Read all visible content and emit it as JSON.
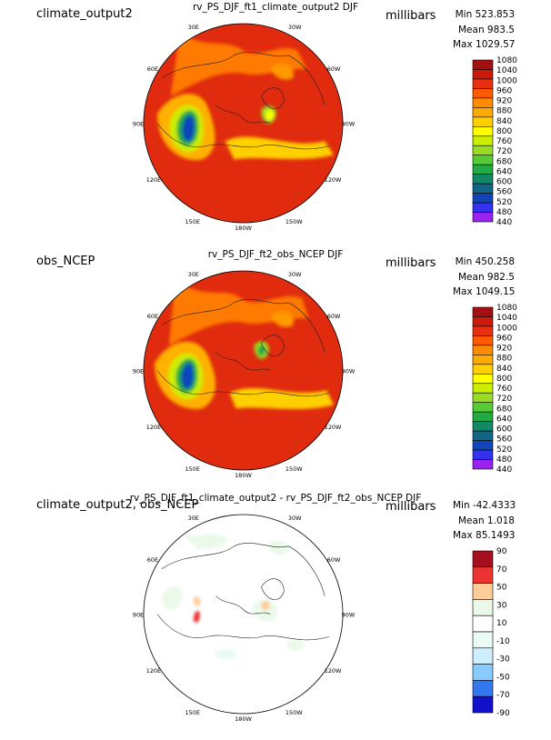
{
  "units": "millibars",
  "lon_labels": [
    "30E",
    "30W",
    "60E",
    "60W",
    "90E",
    "90W",
    "120E",
    "120W",
    "150E",
    "150W",
    "180W"
  ],
  "panels": [
    {
      "case": "climate_output2",
      "title": "rv_PS_DJF_ft1_climate_output2 DJF",
      "min": "Min 523.853",
      "mean": "Mean 983.5",
      "max": "Max 1029.57",
      "levels": [
        "1080",
        "1040",
        "1000",
        "960",
        "920",
        "880",
        "840",
        "800",
        "760",
        "720",
        "680",
        "640",
        "600",
        "560",
        "520",
        "480",
        "440"
      ],
      "colors": [
        "#a50f0f",
        "#cc1a0a",
        "#e83010",
        "#ff5a00",
        "#ff8c00",
        "#ffaa00",
        "#ffd000",
        "#ffff00",
        "#ccee00",
        "#99dd22",
        "#55cc33",
        "#22aa44",
        "#118866",
        "#116688",
        "#1144bb",
        "#3333ee",
        "#9922ee"
      ]
    },
    {
      "case": "obs_NCEP",
      "title": "rv_PS_DJF_ft2_obs_NCEP DJF",
      "min": "Min 450.258",
      "mean": "Mean 982.5",
      "max": "Max 1049.15",
      "levels": [
        "1080",
        "1040",
        "1000",
        "960",
        "920",
        "880",
        "840",
        "800",
        "760",
        "720",
        "680",
        "640",
        "600",
        "560",
        "520",
        "480",
        "440"
      ],
      "colors": [
        "#a50f0f",
        "#cc1a0a",
        "#e83010",
        "#ff5a00",
        "#ff8c00",
        "#ffaa00",
        "#ffd000",
        "#ffff00",
        "#ccee00",
        "#99dd22",
        "#55cc33",
        "#22aa44",
        "#118866",
        "#116688",
        "#1144bb",
        "#3333ee",
        "#9922ee"
      ]
    },
    {
      "case": "climate_output2, obs_NCEP",
      "title": "rv_PS_DJF_ft1_climate_output2 - rv_PS_DJF_ft2_obs_NCEP DJF",
      "min": "Min -42.4333",
      "mean": "Mean 1.018",
      "max": "Max 85.1493",
      "levels": [
        "90",
        "70",
        "50",
        "30",
        "10",
        "-10",
        "-30",
        "-50",
        "-70",
        "-90"
      ],
      "colors": [
        "#a50f1f",
        "#ee3333",
        "#ffcc99",
        "#eaf9ea",
        "#ffffff",
        "#eafaf4",
        "#cceeff",
        "#88ccff",
        "#3377ee",
        "#1111cc"
      ]
    }
  ]
}
